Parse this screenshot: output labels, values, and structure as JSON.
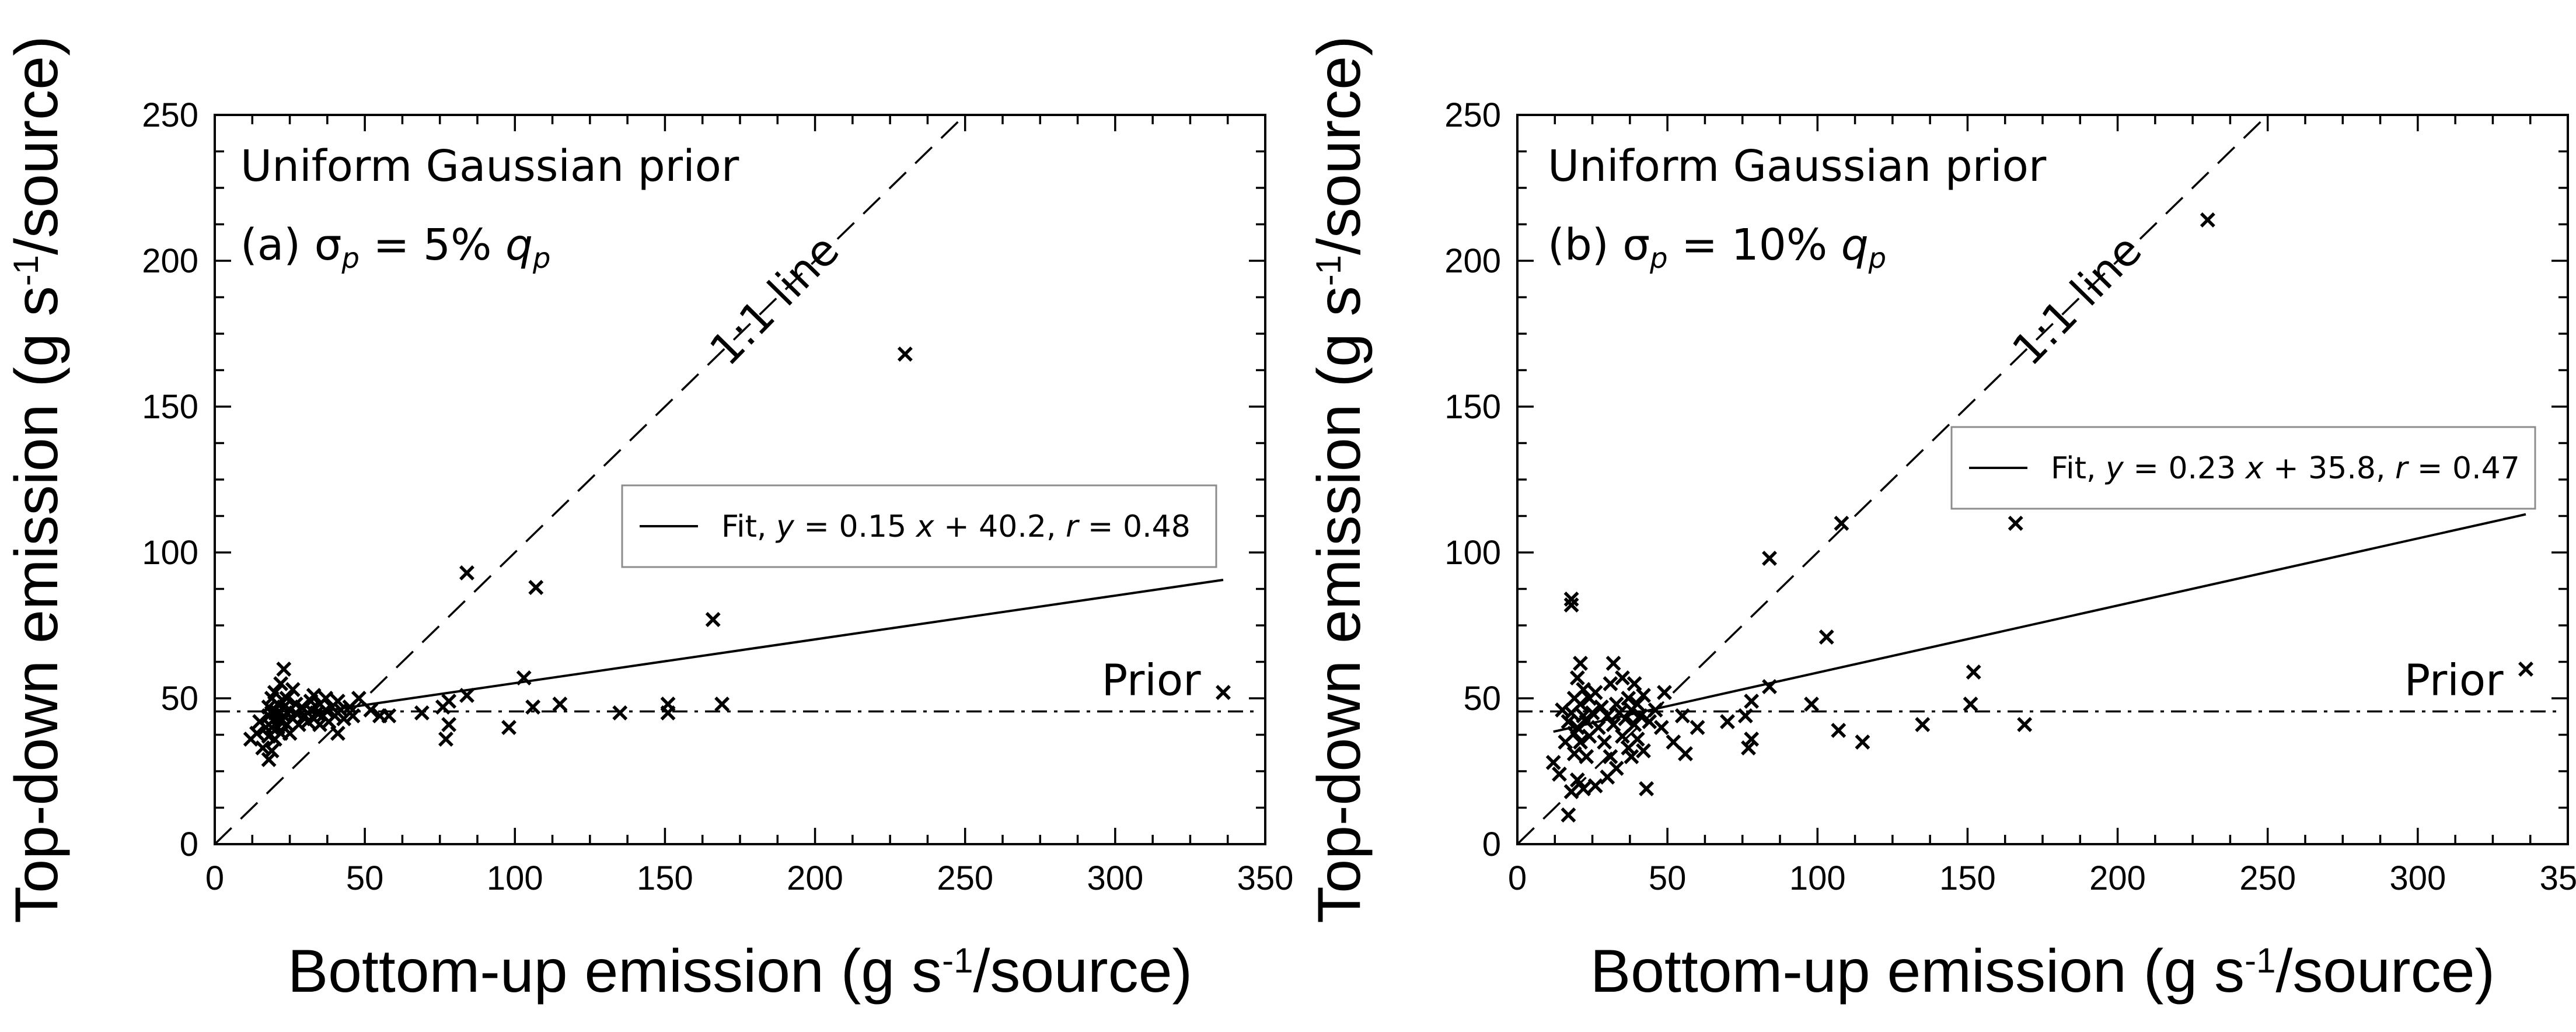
{
  "chart_data": [
    {
      "type": "scatter",
      "panel_label": "(a)",
      "title_line1": "Uniform Gaussian prior",
      "title_line2_prefix": "(a) ",
      "sigma_symbol": "σ",
      "sigma_sub": "p",
      "title_line2_middle": " = 5% ",
      "q_symbol": "q",
      "q_sub": "p",
      "xlabel_prefix": "Bottom-up emission (g s",
      "xlabel_sup": "-1",
      "xlabel_suffix": "/source)",
      "ylabel_prefix": "Top-down emission (g s",
      "ylabel_sup": "-1",
      "ylabel_suffix": "/source)",
      "xlim": [
        0,
        350
      ],
      "ylim": [
        0,
        250
      ],
      "xticks": [
        0,
        50,
        100,
        150,
        200,
        250,
        300,
        350
      ],
      "yticks": [
        0,
        50,
        100,
        150,
        200,
        250
      ],
      "one_to_one_label": "1:1 line",
      "prior_label": "Prior",
      "prior_value": 45.5,
      "fit": {
        "slope": 0.15,
        "intercept": 40.2,
        "r": 0.48,
        "x_range": [
          18,
          336
        ]
      },
      "legend": {
        "position": "center-right",
        "text_prefix": "Fit, ",
        "y": "y",
        "eq": " = 0.15 ",
        "x": "x",
        "tail": " + 40.2, ",
        "r": "r",
        "rval": " = 0.48"
      },
      "points": [
        [
          12,
          36
        ],
        [
          14,
          38
        ],
        [
          15,
          42
        ],
        [
          16,
          33
        ],
        [
          17,
          40
        ],
        [
          18,
          44
        ],
        [
          18,
          29
        ],
        [
          18,
          47
        ],
        [
          18,
          37
        ],
        [
          19,
          45
        ],
        [
          19,
          50
        ],
        [
          19,
          40
        ],
        [
          19,
          32
        ],
        [
          20,
          43
        ],
        [
          20,
          52
        ],
        [
          20,
          36
        ],
        [
          21,
          45
        ],
        [
          21,
          40
        ],
        [
          21,
          48
        ],
        [
          22,
          42
        ],
        [
          22,
          55
        ],
        [
          22,
          38
        ],
        [
          23,
          44
        ],
        [
          23,
          60
        ],
        [
          23,
          47
        ],
        [
          24,
          41
        ],
        [
          24,
          50
        ],
        [
          25,
          46
        ],
        [
          25,
          38
        ],
        [
          26,
          43
        ],
        [
          26,
          53
        ],
        [
          27,
          45
        ],
        [
          27,
          48
        ],
        [
          28,
          41
        ],
        [
          29,
          47
        ],
        [
          30,
          44
        ],
        [
          31,
          42
        ],
        [
          32,
          49
        ],
        [
          32,
          46
        ],
        [
          33,
          43
        ],
        [
          33,
          51
        ],
        [
          34,
          45
        ],
        [
          35,
          41
        ],
        [
          35,
          48
        ],
        [
          36,
          44
        ],
        [
          37,
          50
        ],
        [
          37,
          46
        ],
        [
          38,
          42
        ],
        [
          39,
          47
        ],
        [
          40,
          44
        ],
        [
          41,
          49
        ],
        [
          41,
          38
        ],
        [
          42,
          46
        ],
        [
          43,
          43
        ],
        [
          45,
          47
        ],
        [
          46,
          44
        ],
        [
          48,
          50
        ],
        [
          52,
          46
        ],
        [
          55,
          44
        ],
        [
          58,
          44
        ],
        [
          69,
          45
        ],
        [
          76,
          47
        ],
        [
          77,
          36
        ],
        [
          78,
          41
        ],
        [
          78,
          49
        ],
        [
          84,
          51
        ],
        [
          84,
          93
        ],
        [
          98,
          40
        ],
        [
          103,
          57
        ],
        [
          106,
          47
        ],
        [
          107,
          88
        ],
        [
          115,
          48
        ],
        [
          135,
          45
        ],
        [
          151,
          45
        ],
        [
          151,
          48
        ],
        [
          166,
          77
        ],
        [
          169,
          48
        ],
        [
          230,
          168
        ],
        [
          336,
          52
        ]
      ]
    },
    {
      "type": "scatter",
      "panel_label": "(b)",
      "title_line1": "Uniform Gaussian prior",
      "title_line2_prefix": "(b) ",
      "sigma_symbol": "σ",
      "sigma_sub": "p",
      "title_line2_middle": " = 10% ",
      "q_symbol": "q",
      "q_sub": "p",
      "xlabel_prefix": "Bottom-up emission (g s",
      "xlabel_sup": "-1",
      "xlabel_suffix": "/source)",
      "ylabel_prefix": "Top-down emission (g s",
      "ylabel_sup": "-1",
      "ylabel_suffix": "/source)",
      "xlim": [
        0,
        350
      ],
      "ylim": [
        0,
        250
      ],
      "xticks": [
        0,
        50,
        100,
        150,
        200,
        250,
        300,
        350
      ],
      "yticks": [
        0,
        50,
        100,
        150,
        200,
        250
      ],
      "one_to_one_label": "1:1 line",
      "prior_label": "Prior",
      "prior_value": 45.5,
      "fit": {
        "slope": 0.23,
        "intercept": 35.8,
        "r": 0.47,
        "x_range": [
          12,
          336
        ]
      },
      "legend": {
        "position": "upper-right",
        "text_prefix": "Fit, ",
        "y": "y",
        "eq": " = 0.23 ",
        "x": "x",
        "tail": " + 35.8, ",
        "r": "r",
        "rval": " = 0.47"
      },
      "points": [
        [
          12,
          28
        ],
        [
          14,
          24
        ],
        [
          15,
          46
        ],
        [
          16,
          35
        ],
        [
          17,
          42
        ],
        [
          17,
          10
        ],
        [
          18,
          84
        ],
        [
          18,
          82
        ],
        [
          18,
          45
        ],
        [
          18,
          18
        ],
        [
          19,
          38
        ],
        [
          19,
          50
        ],
        [
          19,
          31
        ],
        [
          20,
          57
        ],
        [
          20,
          40
        ],
        [
          20,
          22
        ],
        [
          21,
          48
        ],
        [
          21,
          35
        ],
        [
          21,
          62
        ],
        [
          22,
          44
        ],
        [
          22,
          53
        ],
        [
          22,
          19
        ],
        [
          23,
          42
        ],
        [
          23,
          30
        ],
        [
          24,
          50
        ],
        [
          24,
          37
        ],
        [
          25,
          45
        ],
        [
          26,
          52
        ],
        [
          26,
          20
        ],
        [
          27,
          40
        ],
        [
          28,
          47
        ],
        [
          29,
          35
        ],
        [
          30,
          44
        ],
        [
          30,
          23
        ],
        [
          31,
          55
        ],
        [
          31,
          30
        ],
        [
          32,
          62
        ],
        [
          32,
          41
        ],
        [
          33,
          48
        ],
        [
          33,
          26
        ],
        [
          34,
          45
        ],
        [
          35,
          57
        ],
        [
          35,
          37
        ],
        [
          36,
          43
        ],
        [
          37,
          33
        ],
        [
          37,
          50
        ],
        [
          38,
          46
        ],
        [
          38,
          30
        ],
        [
          39,
          55
        ],
        [
          39,
          41
        ],
        [
          40,
          48
        ],
        [
          40,
          36
        ],
        [
          41,
          44
        ],
        [
          42,
          32
        ],
        [
          42,
          51
        ],
        [
          43,
          19
        ],
        [
          44,
          42
        ],
        [
          46,
          46
        ],
        [
          48,
          40
        ],
        [
          49,
          52
        ],
        [
          52,
          35
        ],
        [
          55,
          44
        ],
        [
          56,
          31
        ],
        [
          60,
          40
        ],
        [
          70,
          42
        ],
        [
          76,
          44
        ],
        [
          77,
          33
        ],
        [
          78,
          49
        ],
        [
          78,
          36
        ],
        [
          84,
          54
        ],
        [
          84,
          98
        ],
        [
          98,
          48
        ],
        [
          103,
          71
        ],
        [
          107,
          39
        ],
        [
          108,
          110
        ],
        [
          115,
          35
        ],
        [
          135,
          41
        ],
        [
          151,
          48
        ],
        [
          152,
          59
        ],
        [
          166,
          110
        ],
        [
          169,
          41
        ],
        [
          230,
          214
        ],
        [
          336,
          60
        ]
      ]
    }
  ]
}
